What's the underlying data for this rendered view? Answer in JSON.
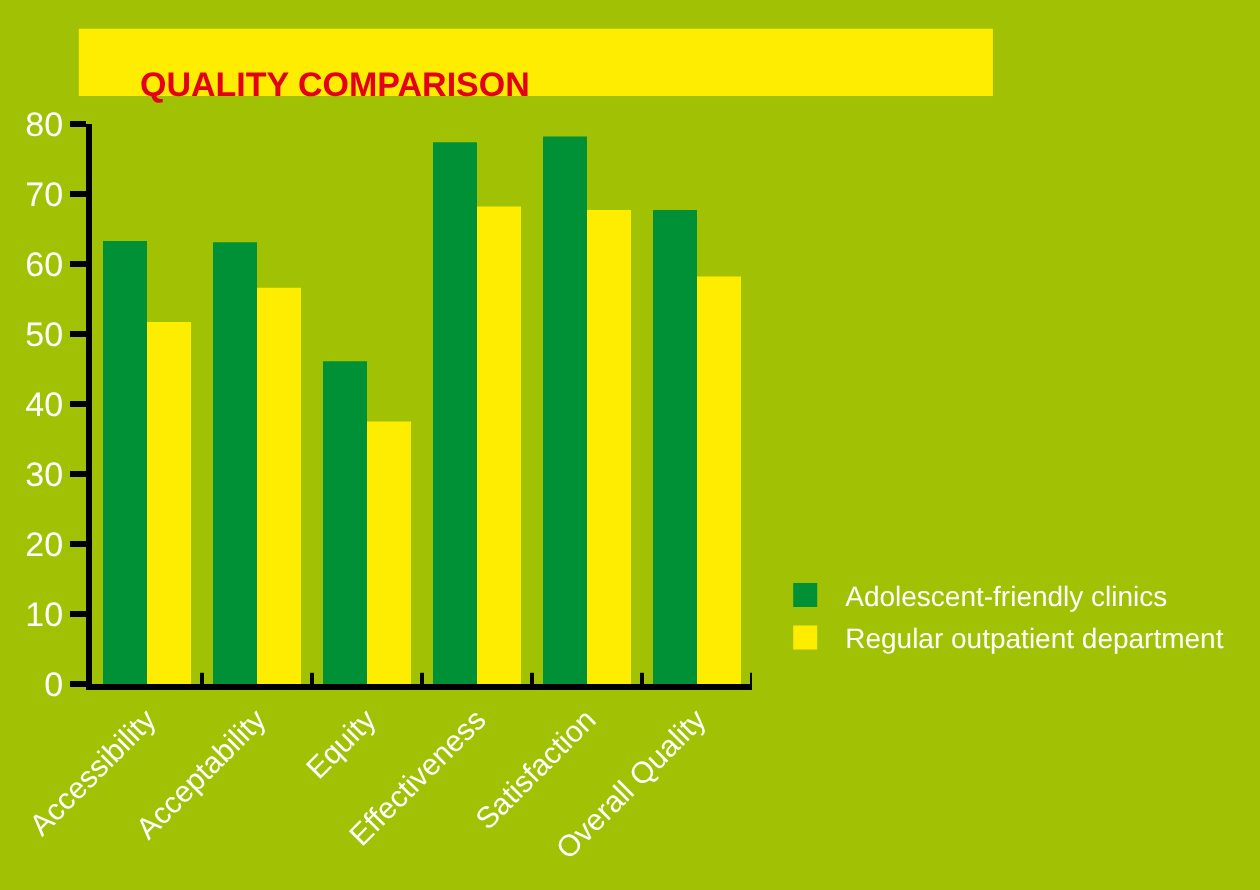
{
  "chart_data": {
    "type": "bar",
    "title": "QUALITY COMPARISON",
    "categories": [
      "Accessibility",
      "Acceptability",
      "Equity",
      "Effectiveness",
      "Satisfaction",
      "Overall Quality"
    ],
    "series": [
      {
        "name": "Adolescent-friendly clinics",
        "color": "#009035",
        "values": [
          63.3,
          63.1,
          46.1,
          77.4,
          78.2,
          67.7
        ]
      },
      {
        "name": "Regular outpatient department",
        "color": "#ffed00",
        "values": [
          51.7,
          56.6,
          37.5,
          68.2,
          67.7,
          58.2
        ]
      }
    ],
    "ylim": [
      0,
      80
    ],
    "yticks": [
      0,
      10,
      20,
      30,
      40,
      50,
      60,
      70,
      80
    ],
    "grid": false,
    "legend": "right"
  }
}
